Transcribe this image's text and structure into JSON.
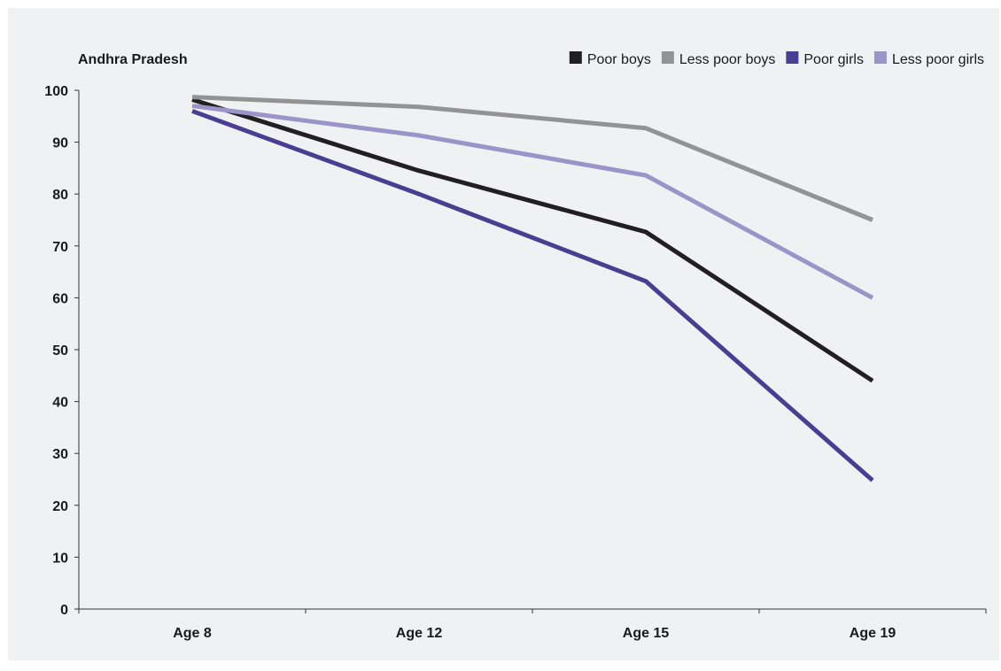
{
  "chart_data": {
    "type": "line",
    "title": "Andhra Pradesh",
    "xlabel": "",
    "ylabel": "",
    "categories": [
      "Age 8",
      "Age 12",
      "Age 15",
      "Age 19"
    ],
    "ylim": [
      0,
      100
    ],
    "yticks": [
      0,
      10,
      20,
      30,
      40,
      50,
      60,
      70,
      80,
      90,
      100
    ],
    "grid": false,
    "legend_position": "top-right",
    "series": [
      {
        "name": "Poor boys",
        "color": "#231f20",
        "values": [
          98.2,
          84.5,
          72.7,
          44.0
        ]
      },
      {
        "name": "Less poor boys",
        "color": "#939393",
        "values": [
          98.7,
          96.8,
          92.7,
          75.0
        ]
      },
      {
        "name": "Poor girls",
        "color": "#4b3d91",
        "values": [
          96.0,
          80.0,
          63.2,
          24.8
        ]
      },
      {
        "name": "Less poor girls",
        "color": "#9c93c8",
        "values": [
          97.0,
          91.3,
          83.6,
          60.0
        ]
      }
    ]
  }
}
